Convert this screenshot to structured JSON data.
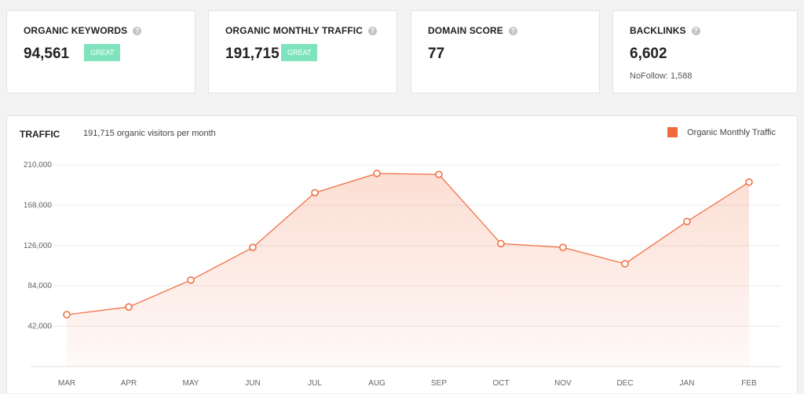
{
  "cards": [
    {
      "title": "ORGANIC KEYWORDS",
      "value": "94,561",
      "badge": "GREAT",
      "help": "?"
    },
    {
      "title": "ORGANIC MONTHLY TRAFFIC",
      "value": "191,715",
      "badge": "GREAT",
      "help": "?"
    },
    {
      "title": "DOMAIN SCORE",
      "value": "77",
      "help": "?"
    },
    {
      "title": "BACKLINKS",
      "value": "6,602",
      "sub": "NoFollow: 1,588",
      "help": "?"
    }
  ],
  "traffic": {
    "title": "TRAFFIC",
    "subtitle": "191,715 organic visitors per month",
    "legend": "Organic Monthly Traffic"
  },
  "colors": {
    "accent": "#f0693a",
    "badge": "#7fe4bd"
  },
  "chart_data": {
    "type": "area",
    "categories": [
      "MAR",
      "APR",
      "MAY",
      "JUN",
      "JUL",
      "AUG",
      "SEP",
      "OCT",
      "NOV",
      "DEC",
      "JAN",
      "FEB"
    ],
    "series": [
      {
        "name": "Organic Monthly Traffic",
        "values": [
          54000,
          62000,
          90000,
          124000,
          181000,
          201000,
          200000,
          128000,
          124000,
          107000,
          151000,
          192000
        ]
      }
    ],
    "yticks": [
      "210,000",
      "168,000",
      "126,000",
      "84,000",
      "42,000"
    ],
    "ytick_values": [
      210000,
      168000,
      126000,
      84000,
      42000
    ],
    "ylim": [
      0,
      210000
    ],
    "grid": true,
    "legend_position": "top-right"
  }
}
